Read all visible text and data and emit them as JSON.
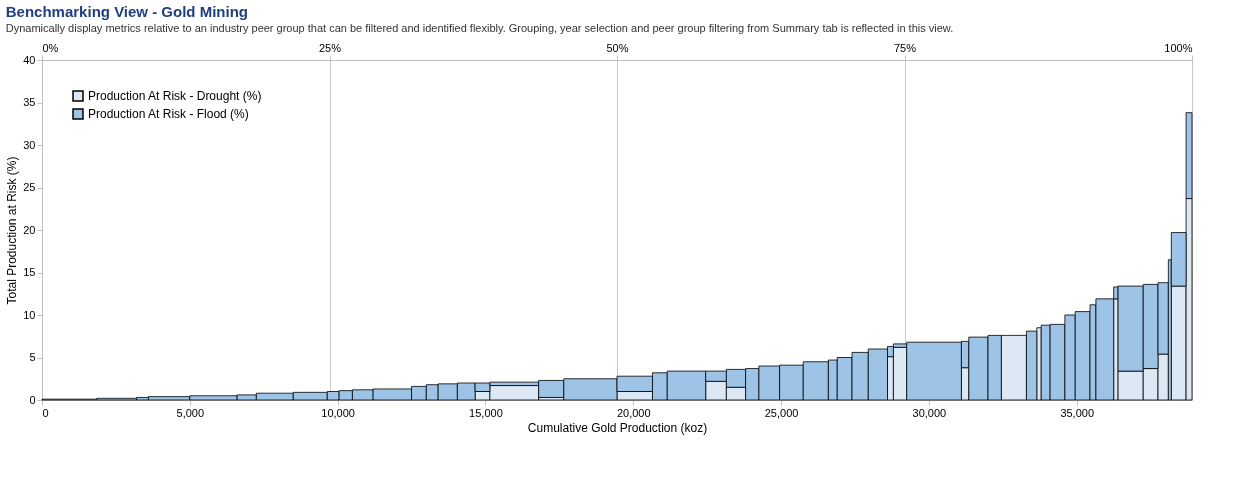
{
  "chart_data": {
    "type": "bar",
    "stacked": true,
    "title": "Benchmarking View - Gold Mining",
    "subtitle": "Dynamically display metrics relative to an industry peer group that can be filtered and identified flexibly. Grouping, year selection and peer group filtering from Summary tab is reflected in this view.",
    "xlabel": "Cumulative Gold Production (koz)",
    "ylabel": "Total Production at Risk (%)",
    "x": [
      925,
      2525,
      3400,
      4300,
      5800,
      6925,
      7875,
      9075,
      9850,
      10275,
      10850,
      11850,
      12750,
      13200,
      13725,
      14350,
      14900,
      15975,
      17225,
      18550,
      20050,
      20900,
      21800,
      22800,
      23475,
      24025,
      24600,
      25350,
      26175,
      26750,
      27150,
      27675,
      28275,
      28700,
      29025,
      30175,
      31225,
      31675,
      32225,
      32875,
      33475,
      33725,
      33950,
      34350,
      34775,
      35200,
      35550,
      35950,
      36325,
      36825,
      37500,
      37925,
      38150,
      38450,
      38800
    ],
    "series": [
      {
        "name": "Production At Risk - Drought (%)",
        "color": "#dde8f5",
        "values": [
          0,
          0,
          0,
          0,
          0,
          0,
          0,
          0,
          0,
          0,
          0,
          0,
          0,
          0,
          0,
          0,
          1.0,
          1.7,
          0.3,
          0,
          1.0,
          0,
          0,
          2.2,
          1.5,
          0,
          0,
          0,
          0,
          0,
          0,
          0,
          0,
          5.1,
          6.2,
          0,
          3.8,
          0,
          0,
          7.6,
          0,
          8.5,
          0,
          0,
          0,
          0,
          0,
          0,
          11.9,
          3.4,
          3.7,
          5.4,
          0,
          13.4,
          23.7
        ]
      },
      {
        "name": "Production At Risk - Flood (%)",
        "color": "#9dc3e6",
        "values": [
          0.1,
          0.2,
          0.3,
          0.4,
          0.5,
          0.6,
          0.8,
          0.9,
          1.0,
          1.1,
          1.2,
          1.3,
          1.6,
          1.8,
          1.9,
          2.0,
          1.0,
          0.4,
          2.0,
          2.5,
          1.8,
          3.2,
          3.4,
          1.2,
          2.1,
          3.7,
          4.0,
          4.1,
          4.5,
          4.7,
          5.0,
          5.6,
          6.0,
          1.2,
          0.4,
          6.8,
          3.1,
          7.4,
          7.6,
          0,
          8.1,
          0,
          8.8,
          8.9,
          10.0,
          10.4,
          11.2,
          11.9,
          1.4,
          10.0,
          9.9,
          8.4,
          16.5,
          6.3,
          10.1
        ]
      }
    ],
    "xlim": [
      0,
      38900
    ],
    "xticks": [
      0,
      {
        "value": 5000,
        "label": "5,000"
      },
      {
        "value": 10000,
        "label": "10,000"
      },
      {
        "value": 15000,
        "label": "15,000"
      },
      {
        "value": 20000,
        "label": "20,000"
      },
      {
        "value": 25000,
        "label": "25,000"
      },
      {
        "value": 30000,
        "label": "30,000"
      },
      {
        "value": 35000,
        "label": "35,000"
      }
    ],
    "x2lim": [
      0,
      100
    ],
    "x2ticks": [
      {
        "value": 0,
        "label": "0%"
      },
      {
        "value": 25,
        "label": "25%"
      },
      {
        "value": 50,
        "label": "50%"
      },
      {
        "value": 75,
        "label": "75%"
      },
      {
        "value": 100,
        "label": "100%"
      }
    ],
    "ylim": [
      0,
      40
    ],
    "yticks": [
      0,
      5,
      10,
      15,
      20,
      25,
      30,
      35,
      40
    ],
    "grid": "x",
    "legend": "top left"
  }
}
